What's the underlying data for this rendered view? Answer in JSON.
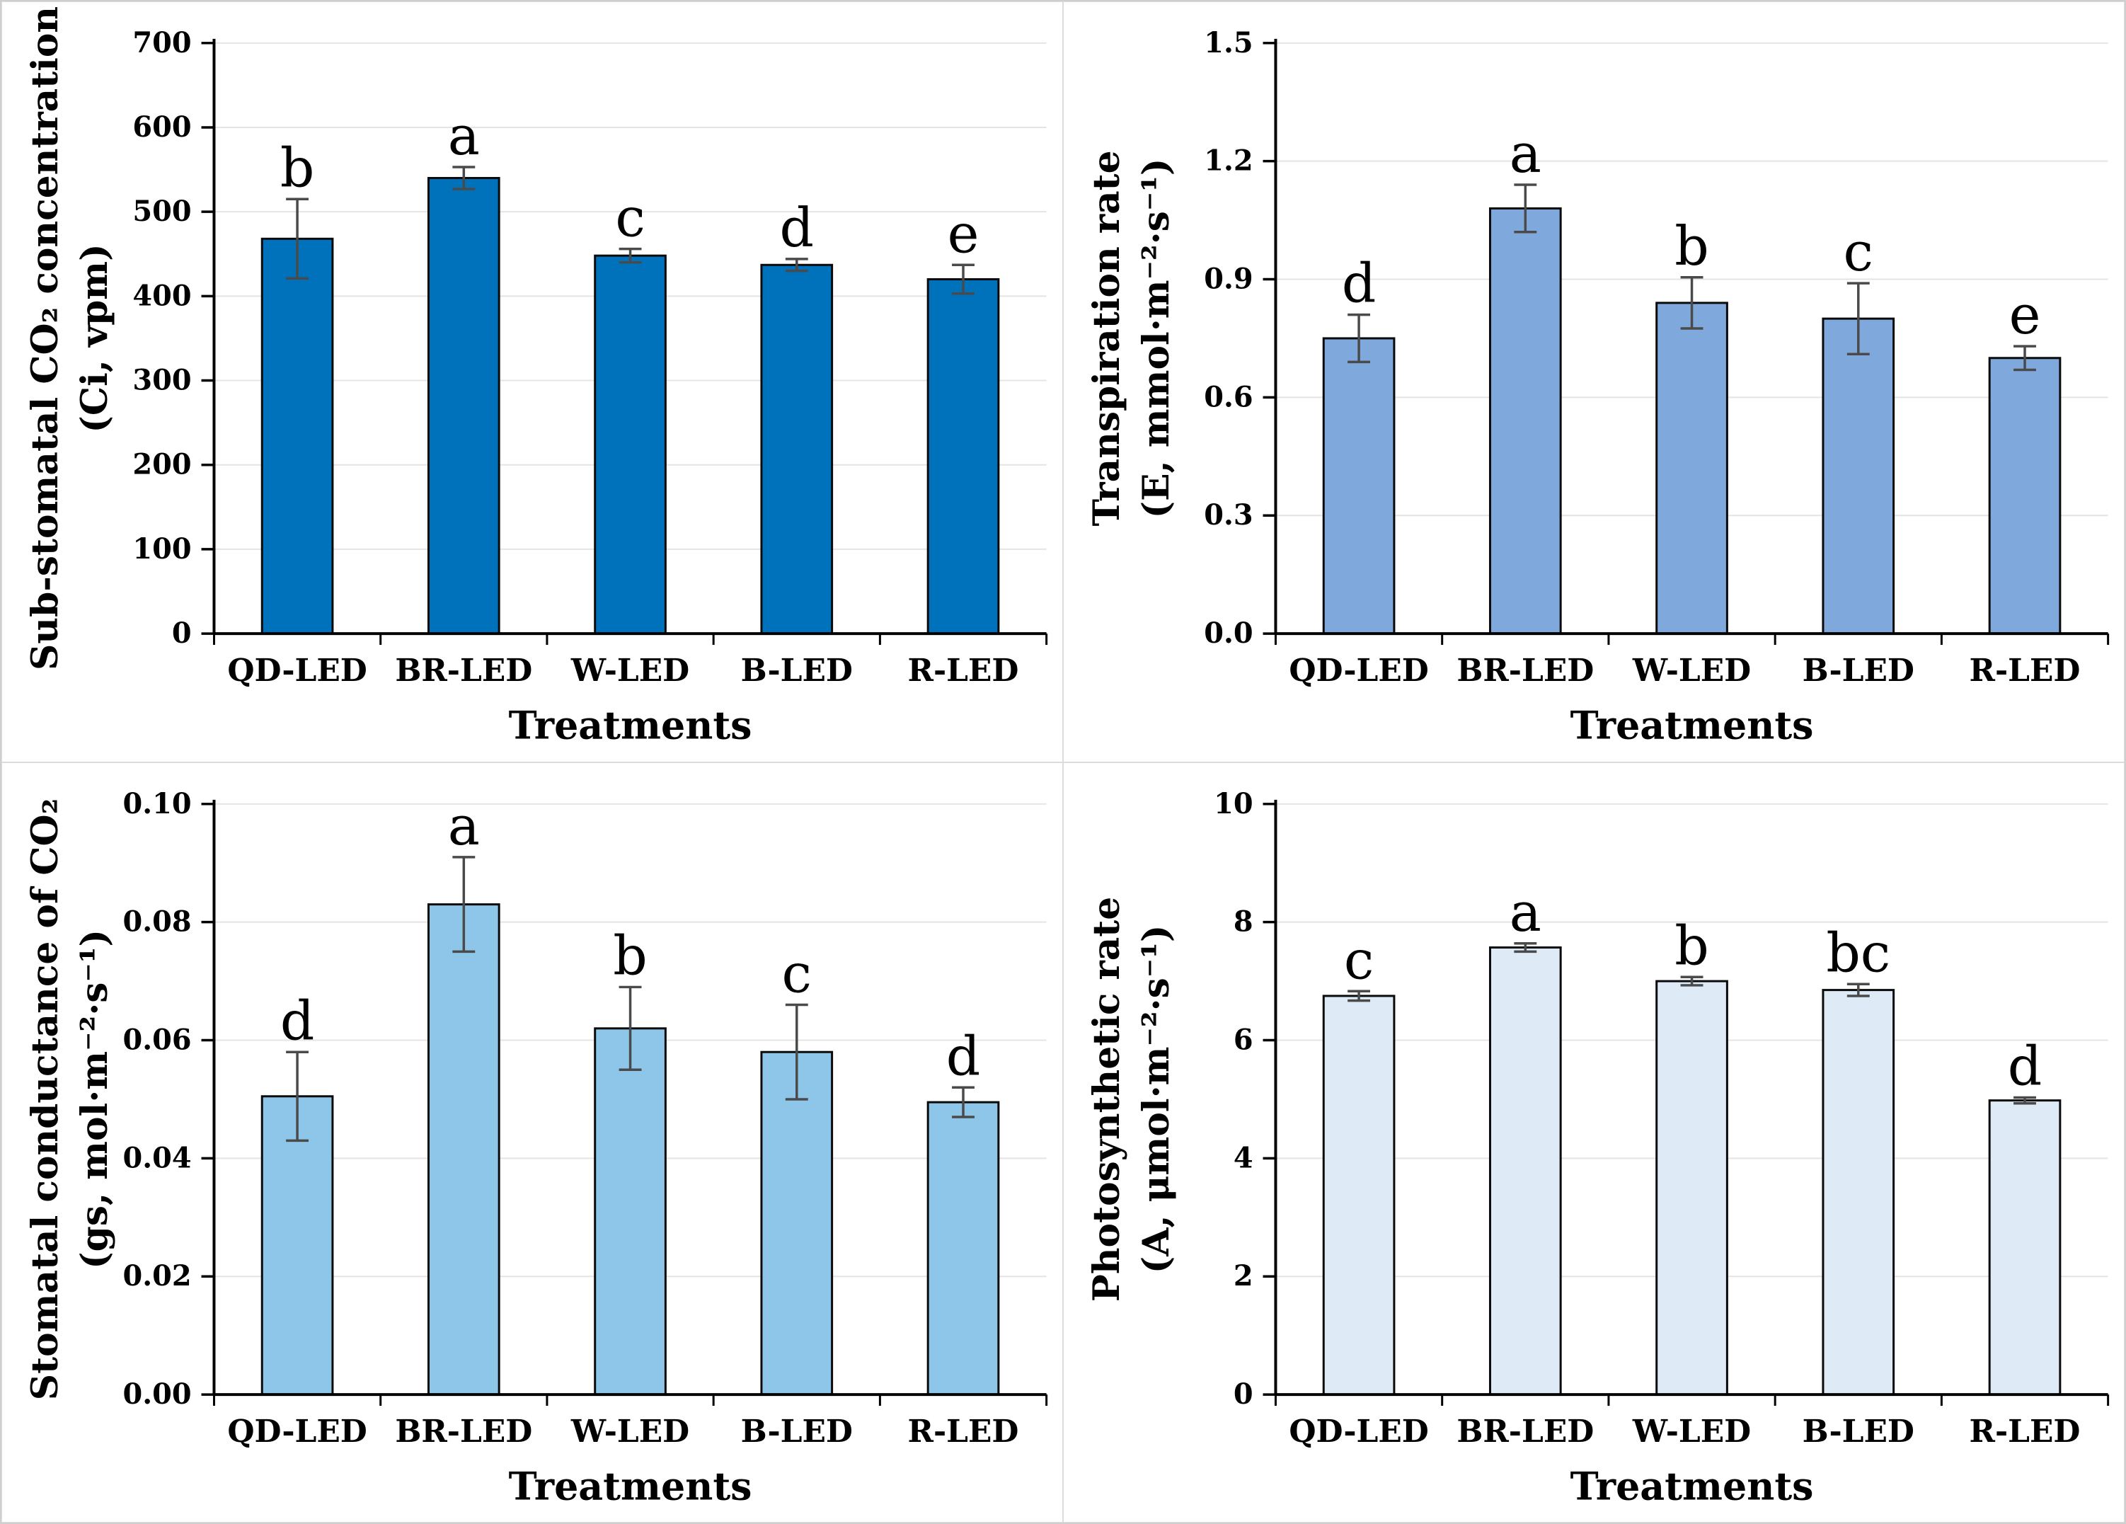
{
  "figure": {
    "background": "#FFFFFF",
    "panel_border_color": "#DCDCDC",
    "frame_border_color": "#CFCFCF",
    "grid_color": "#E4E4E4",
    "axis_color": "#000000",
    "error_bar_color": "#4A4A4A",
    "xlabel": "Treatments",
    "categories": [
      "QD-LED",
      "BR-LED",
      "W-LED",
      "B-LED",
      "R-LED"
    ]
  },
  "chart_data": [
    {
      "type": "bar",
      "panel": "top-left",
      "title_lines": [
        "Sub-stomatal CO₂ concentration",
        "(Ci, vpm)"
      ],
      "xlabel": "Treatments",
      "categories": [
        "QD-LED",
        "BR-LED",
        "W-LED",
        "B-LED",
        "R-LED"
      ],
      "values": [
        468,
        540,
        448,
        437,
        420
      ],
      "errors": [
        47,
        13,
        8,
        7,
        17
      ],
      "sig_letters": [
        "b",
        "a",
        "c",
        "d",
        "e"
      ],
      "bar_color": "#0072BC",
      "ylim": [
        0,
        700
      ],
      "ytick_values": [
        700,
        600,
        500,
        400,
        300,
        200,
        100,
        0
      ],
      "ytick_labels": [
        "700",
        "600",
        "500",
        "400",
        "300",
        "200",
        "100",
        "0"
      ],
      "grid": true,
      "legend": "none"
    },
    {
      "type": "bar",
      "panel": "top-right",
      "title_lines": [
        "Transpiration rate",
        "(E, mmol·m⁻²·s⁻¹)"
      ],
      "xlabel": "Treatments",
      "categories": [
        "QD-LED",
        "BR-LED",
        "W-LED",
        "B-LED",
        "R-LED"
      ],
      "values": [
        0.75,
        1.08,
        0.84,
        0.8,
        0.7
      ],
      "errors": [
        0.06,
        0.06,
        0.065,
        0.09,
        0.03
      ],
      "sig_letters": [
        "d",
        "a",
        "b",
        "c",
        "e"
      ],
      "bar_color": "#7FA8DC",
      "ylim": [
        0,
        1.5
      ],
      "ytick_values": [
        1.5,
        1.2,
        0.9,
        0.6,
        0.3,
        0
      ],
      "ytick_labels": [
        "1.5",
        "1.2",
        "0.9",
        "0.6",
        "0.3",
        "0.0"
      ],
      "grid": true,
      "legend": "none"
    },
    {
      "type": "bar",
      "panel": "bottom-left",
      "title_lines": [
        "Stomatal conductance of CO₂",
        "(gs, mol·m⁻²·s⁻¹)"
      ],
      "xlabel": "Treatments",
      "categories": [
        "QD-LED",
        "BR-LED",
        "W-LED",
        "B-LED",
        "R-LED"
      ],
      "values": [
        0.0505,
        0.083,
        0.062,
        0.058,
        0.0495
      ],
      "errors": [
        0.0075,
        0.008,
        0.007,
        0.008,
        0.0025
      ],
      "sig_letters": [
        "d",
        "a",
        "b",
        "c",
        "d"
      ],
      "bar_color": "#8EC6E9",
      "ylim": [
        0,
        0.1
      ],
      "ytick_values": [
        0.1,
        0.08,
        0.06,
        0.04,
        0.02,
        0
      ],
      "ytick_labels": [
        "0.10",
        "0.08",
        "0.06",
        "0.04",
        "0.02",
        "0.00"
      ],
      "grid": true,
      "legend": "none"
    },
    {
      "type": "bar",
      "panel": "bottom-right",
      "title_lines": [
        "Photosynthetic rate",
        "(A, μmol·m⁻²·s⁻¹)"
      ],
      "xlabel": "Treatments",
      "categories": [
        "QD-LED",
        "BR-LED",
        "W-LED",
        "B-LED",
        "R-LED"
      ],
      "values": [
        6.75,
        7.57,
        7.0,
        6.85,
        4.98
      ],
      "errors": [
        0.08,
        0.07,
        0.07,
        0.1,
        0.05
      ],
      "sig_letters": [
        "c",
        "a",
        "b",
        "bc",
        "d"
      ],
      "bar_color": "#DEEAF6",
      "ylim": [
        0,
        10
      ],
      "ytick_values": [
        10,
        8,
        6,
        4,
        2,
        0
      ],
      "ytick_labels": [
        "10",
        "8",
        "6",
        "4",
        "2",
        "0"
      ],
      "grid": true,
      "legend": "none"
    }
  ]
}
